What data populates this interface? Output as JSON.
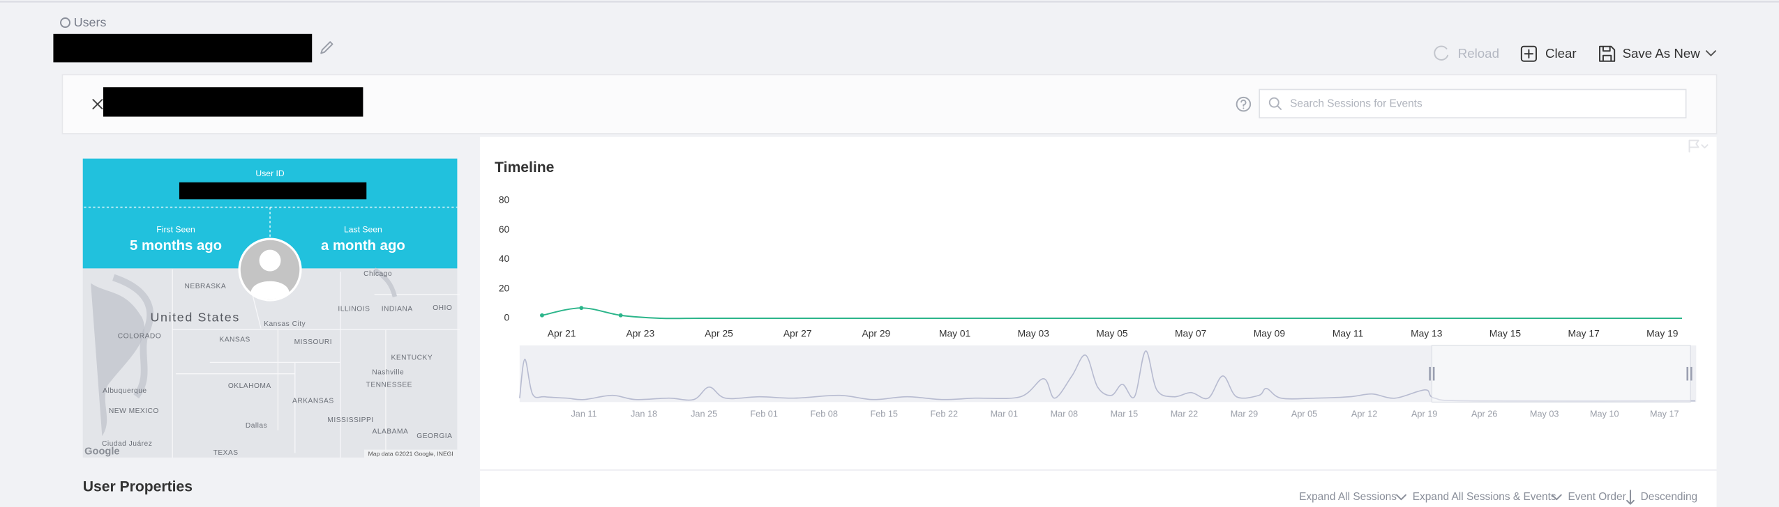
{
  "breadcrumb": "Users",
  "toolbar": {
    "reload": "Reload",
    "clear": "Clear",
    "save": "Save As New"
  },
  "search": {
    "placeholder": "Search Sessions for Events"
  },
  "user_card": {
    "user_id_label": "User ID",
    "first_seen_label": "First Seen",
    "first_seen": "5 months ago",
    "last_seen_label": "Last Seen",
    "last_seen": "a month ago"
  },
  "map": {
    "labels": [
      "NEBRASKA",
      "United States",
      "ILLINOIS",
      "INDIANA",
      "OHIO",
      "Chicago",
      "COLORADO",
      "KANSAS",
      "Kansas City",
      "MISSOURI",
      "KENTUCKY",
      "Nashville",
      "TENNESSEE",
      "OKLAHOMA",
      "ARKANSAS",
      "NEW MEXICO",
      "Albuquerque",
      "MISSISSIPPI",
      "Dallas",
      "ALABAMA",
      "GEORGIA",
      "TEXAS",
      "Ciudad Juárez"
    ],
    "logo": "Google",
    "attribution": "Map data ©2021 Google, INEGI"
  },
  "user_properties": "User Properties",
  "chart_data": [
    {
      "type": "line",
      "title": "Timeline",
      "x": [
        -0.5,
        0.5,
        1.5,
        2.5,
        3.5,
        4.5,
        5.5,
        6.5,
        7.5,
        8.5,
        9.5,
        10.5,
        11.5,
        12.5,
        13.5,
        14.5,
        15.5,
        16.5,
        17.5,
        18.5,
        19.5,
        20.5,
        21.5,
        22.5,
        23.5,
        24.5,
        25.5,
        26.5,
        27.5,
        28.5
      ],
      "series": [
        {
          "color": "#2bb58a",
          "values": [
            2,
            7,
            2,
            0,
            0,
            0,
            0,
            0,
            0,
            0,
            0,
            0,
            0,
            0,
            0,
            0,
            0,
            0,
            0,
            0,
            0,
            0,
            0,
            0,
            0,
            0,
            0,
            0,
            0,
            0
          ]
        }
      ],
      "xlim": [
        -1.07,
        28.86
      ],
      "xticks": [
        {
          "value": 0,
          "label": "Apr 21"
        },
        {
          "value": 2,
          "label": "Apr 23"
        },
        {
          "value": 4,
          "label": "Apr 25"
        },
        {
          "value": 6,
          "label": "Apr 27"
        },
        {
          "value": 8,
          "label": "Apr 29"
        },
        {
          "value": 10,
          "label": "May 01"
        },
        {
          "value": 12,
          "label": "May 03"
        },
        {
          "value": 14,
          "label": "May 05"
        },
        {
          "value": 16,
          "label": "May 07"
        },
        {
          "value": 18,
          "label": "May 09"
        },
        {
          "value": 20,
          "label": "May 11"
        },
        {
          "value": 22,
          "label": "May 13"
        },
        {
          "value": 24,
          "label": "May 15"
        },
        {
          "value": 26,
          "label": "May 17"
        },
        {
          "value": 28,
          "label": "May 19"
        }
      ],
      "ylim": [
        0,
        80
      ],
      "yticks": [
        0,
        20,
        40,
        60,
        80
      ]
    },
    {
      "type": "area",
      "x": [
        -7.5,
        -6.9,
        -6,
        -4.6,
        -2,
        0,
        3.3,
        6,
        9.9,
        12.8,
        14.6,
        16.5,
        20.5,
        24.5,
        29.8,
        33.7,
        37.7,
        41.7,
        45.6,
        50.9,
        53.6,
        54.9,
        56.9,
        58.5,
        59.9,
        61.5,
        62.8,
        64.2,
        65.5,
        66.8,
        68.8,
        70.8,
        72.8,
        74.5,
        76.1,
        78.7,
        79.6,
        81.3,
        85.3,
        89.3,
        91.9,
        94.6,
        98.1,
        99.2,
        103.8,
        129.6
      ],
      "series": [
        {
          "color": "#b7bbd0",
          "values": [
            2,
            30,
            5,
            3,
            2,
            1,
            4,
            1,
            2,
            1,
            10,
            2,
            3,
            2,
            4,
            1,
            3,
            1,
            2,
            3,
            16,
            2,
            18,
            33,
            10,
            4,
            12,
            3,
            36,
            8,
            3,
            6,
            2,
            18,
            3,
            4,
            9,
            2,
            2,
            3,
            5,
            2,
            8,
            2,
            0,
            0
          ]
        }
      ],
      "xlim": [
        -7.5,
        129.7
      ],
      "xticks": [
        {
          "value": 0,
          "label": "Jan 11"
        },
        {
          "value": 7,
          "label": "Jan 18"
        },
        {
          "value": 14,
          "label": "Jan 25"
        },
        {
          "value": 21,
          "label": "Feb 01"
        },
        {
          "value": 28,
          "label": "Feb 08"
        },
        {
          "value": 35,
          "label": "Feb 15"
        },
        {
          "value": 42,
          "label": "Feb 22"
        },
        {
          "value": 49,
          "label": "Mar 01"
        },
        {
          "value": 56,
          "label": "Mar 08"
        },
        {
          "value": 63,
          "label": "Mar 15"
        },
        {
          "value": 70,
          "label": "Mar 22"
        },
        {
          "value": 77,
          "label": "Mar 29"
        },
        {
          "value": 84,
          "label": "Apr 05"
        },
        {
          "value": 91,
          "label": "Apr 12"
        },
        {
          "value": 98,
          "label": "Apr 19"
        },
        {
          "value": 105,
          "label": "Apr 26"
        },
        {
          "value": 112,
          "label": "May 03"
        },
        {
          "value": 119,
          "label": "May 10"
        },
        {
          "value": 126,
          "label": "May 17"
        }
      ],
      "ylim": [
        0,
        40
      ]
    }
  ],
  "session_controls": {
    "expand_sessions": "Expand All Sessions",
    "expand_events": "Expand All Sessions & Events",
    "event_order": "Event Order",
    "order": "Descending"
  }
}
